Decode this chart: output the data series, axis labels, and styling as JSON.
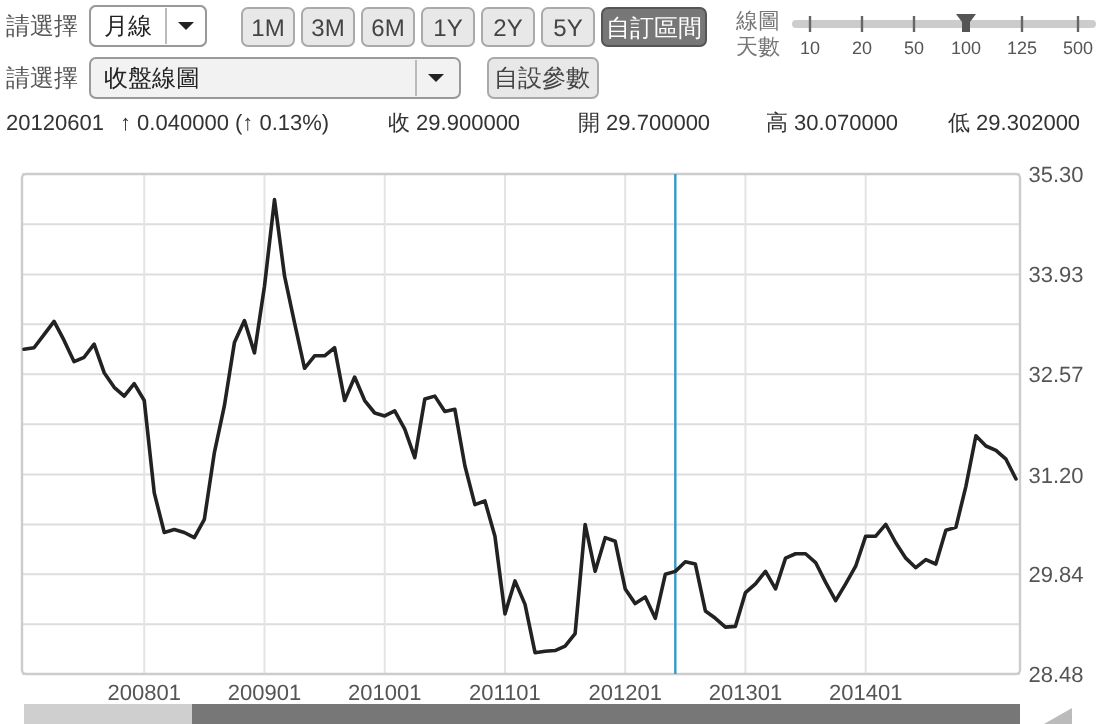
{
  "chart_data": {
    "type": "line",
    "x": [
      "2007-01",
      "2007-02",
      "2007-03",
      "2007-04",
      "2007-05",
      "2007-06",
      "2007-07",
      "2007-08",
      "2007-09",
      "2007-10",
      "2007-11",
      "2007-12",
      "2008-01",
      "2008-02",
      "2008-03",
      "2008-04",
      "2008-05",
      "2008-06",
      "2008-07",
      "2008-08",
      "2008-09",
      "2008-10",
      "2008-11",
      "2008-12",
      "2009-01",
      "2009-02",
      "2009-03",
      "2009-04",
      "2009-05",
      "2009-06",
      "2009-07",
      "2009-08",
      "2009-09",
      "2009-10",
      "2009-11",
      "2009-12",
      "2010-01",
      "2010-02",
      "2010-03",
      "2010-04",
      "2010-05",
      "2010-06",
      "2010-07",
      "2010-08",
      "2010-09",
      "2010-10",
      "2010-11",
      "2010-12",
      "2011-01",
      "2011-02",
      "2011-03",
      "2011-04",
      "2011-05",
      "2011-06",
      "2011-07",
      "2011-08",
      "2011-09",
      "2011-10",
      "2011-11",
      "2011-12",
      "2012-01",
      "2012-02",
      "2012-03",
      "2012-04",
      "2012-05",
      "2012-06",
      "2012-07",
      "2012-08",
      "2012-09",
      "2012-10",
      "2012-11",
      "2012-12",
      "2013-01",
      "2013-02",
      "2013-03",
      "2013-04",
      "2013-05",
      "2013-06",
      "2013-07",
      "2013-08",
      "2013-09",
      "2013-10",
      "2013-11",
      "2013-12",
      "2014-01",
      "2014-02",
      "2014-03",
      "2014-04",
      "2014-05",
      "2014-06",
      "2014-07",
      "2014-08",
      "2014-09",
      "2014-10",
      "2014-11",
      "2014-12",
      "2015-01",
      "2015-02",
      "2015-03",
      "2015-04"
    ],
    "series": [
      {
        "color": "#222222",
        "values": [
          32.91,
          32.93,
          33.11,
          33.29,
          33.03,
          32.74,
          32.8,
          32.98,
          32.59,
          32.39,
          32.27,
          32.44,
          32.21,
          30.95,
          30.41,
          30.45,
          30.41,
          30.34,
          30.59,
          31.5,
          32.14,
          33.0,
          33.3,
          32.86,
          33.77,
          34.95,
          33.91,
          33.27,
          32.65,
          32.82,
          32.82,
          32.93,
          32.21,
          32.53,
          32.21,
          32.04,
          32.0,
          32.07,
          31.82,
          31.43,
          32.23,
          32.27,
          32.06,
          32.09,
          31.32,
          30.79,
          30.84,
          30.36,
          29.3,
          29.75,
          29.43,
          28.77,
          28.79,
          28.8,
          28.86,
          29.03,
          30.52,
          29.88,
          30.34,
          30.29,
          29.64,
          29.44,
          29.53,
          29.24,
          29.84,
          29.88,
          30.01,
          29.98,
          29.34,
          29.24,
          29.12,
          29.13,
          29.59,
          29.71,
          29.88,
          29.64,
          30.06,
          30.12,
          30.12,
          30.0,
          29.73,
          29.48,
          29.71,
          29.95,
          30.36,
          30.36,
          30.52,
          30.27,
          30.06,
          29.93,
          30.04,
          29.98,
          30.44,
          30.48,
          31.04,
          31.73,
          31.59,
          31.53,
          31.41,
          31.14
        ]
      }
    ],
    "xlim": [
      "2007-01",
      "2015-04"
    ],
    "xticks": [
      {
        "value": "2008-01",
        "label": "200801"
      },
      {
        "value": "2009-01",
        "label": "200901"
      },
      {
        "value": "2010-01",
        "label": "201001"
      },
      {
        "value": "2011-01",
        "label": "201101"
      },
      {
        "value": "2012-01",
        "label": "201201"
      },
      {
        "value": "2013-01",
        "label": "201301"
      },
      {
        "value": "2014-01",
        "label": "201401"
      }
    ],
    "ylim": [
      28.48,
      35.3
    ],
    "yticks": [
      28.48,
      {
        "value": 29.16,
        "label": null
      },
      29.84,
      {
        "value": 30.52,
        "label": null
      },
      {
        "value": 31.2,
        "label": "31.20"
      },
      {
        "value": 31.885,
        "label": null
      },
      32.57,
      {
        "value": 33.25,
        "label": null
      },
      33.93,
      {
        "value": 34.615,
        "label": null
      },
      {
        "value": 35.3,
        "label": "35.30"
      }
    ],
    "grid": true,
    "ref_lines": [
      {
        "axis": "x",
        "value": "2012-06",
        "color": "#3399cc"
      }
    ],
    "annotations": [
      "請選擇",
      "月線",
      "1M",
      "3M",
      "6M",
      "1Y",
      "2Y",
      "5Y",
      "自訂區間",
      "線圖",
      "天數",
      "10",
      "20",
      "50",
      "100",
      "125",
      "500",
      "請選擇",
      "收盤線圖",
      "自設參數",
      "20120601",
      "↑ 0.040000 (↑ 0.13%)",
      "收 29.900000",
      "開 29.700000",
      "高 30.070000",
      "低 29.302000"
    ]
  }
}
